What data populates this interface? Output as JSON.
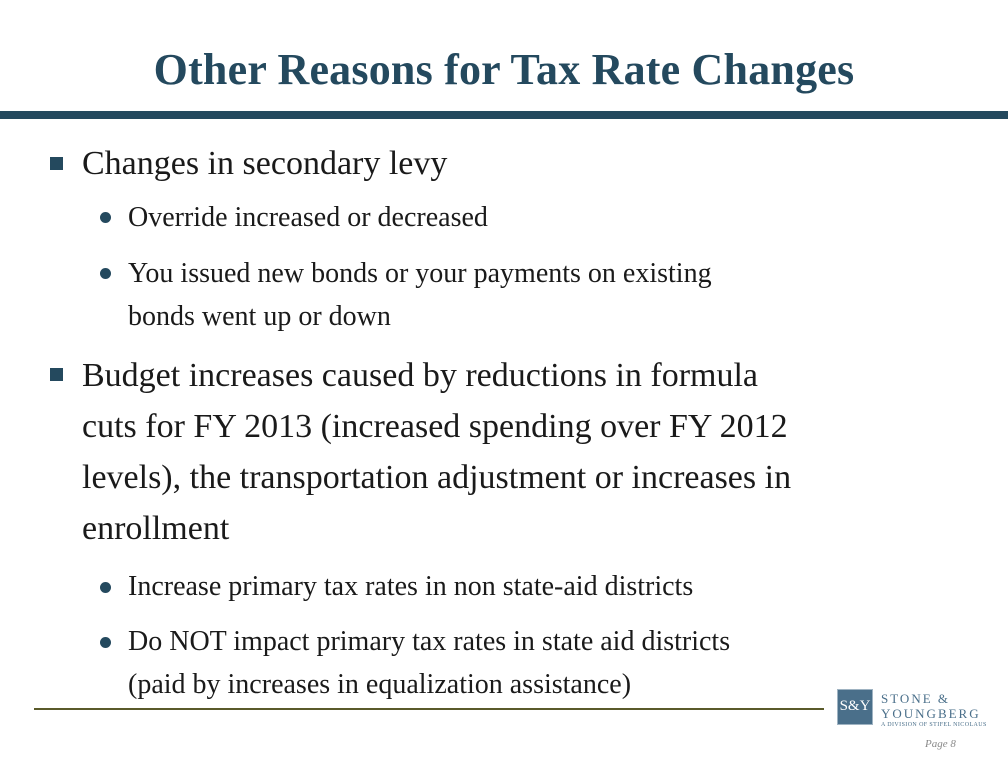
{
  "slide": {
    "title": "Other Reasons for Tax Rate Changes",
    "bullets": [
      {
        "text": "Changes in secondary levy",
        "sub": [
          {
            "text": "Override increased or decreased"
          },
          {
            "text_lines": [
              "You issued new bonds or your payments on existing",
              "bonds went up or down"
            ]
          }
        ]
      },
      {
        "text_lines": [
          "Budget increases caused by reductions in formula",
          "cuts for FY 2013 (increased spending over FY 2012",
          "levels), the transportation adjustment or increases in",
          "enrollment"
        ],
        "sub": [
          {
            "text": "Increase primary tax rates in non state-aid districts"
          },
          {
            "text_lines": [
              "Do NOT impact primary tax rates in state aid districts",
              "(paid by increases in equalization assistance)"
            ]
          }
        ]
      }
    ]
  },
  "footer": {
    "logo_mark": "S&Y",
    "logo_name_line1": "STONE &",
    "logo_name_line2": "YOUNGBERG",
    "logo_tagline": "A DIVISION OF STIFEL NICOLAUS",
    "page_label": "Page 8"
  },
  "colors": {
    "accent": "#24495e",
    "text": "#1a1a1a",
    "footer_rule": "#5a5a2a",
    "logo": "#4a6f8a"
  }
}
